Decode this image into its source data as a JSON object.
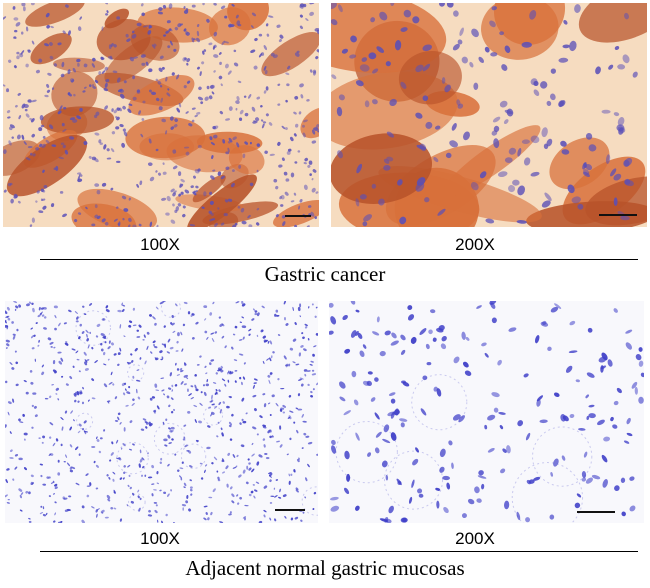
{
  "figure": {
    "top_group": {
      "title": "Gastric cancer",
      "panels": [
        {
          "magnification": "100X",
          "stain": "positive"
        },
        {
          "magnification": "200X",
          "stain": "positive"
        }
      ]
    },
    "bottom_group": {
      "title": "Adjacent  normal gastric mucosas",
      "panels": [
        {
          "magnification": "100X",
          "stain": "negative"
        },
        {
          "magnification": "200X",
          "stain": "negative"
        }
      ]
    },
    "colors": {
      "cancer_background": "#f6dcc0",
      "cancer_stain": "#d8703a",
      "cancer_stain_dark": "#b8532a",
      "nuclei": "#5a4fb8",
      "normal_background": "#f8f8fc",
      "normal_nuclei": "#3f3fc8"
    }
  }
}
